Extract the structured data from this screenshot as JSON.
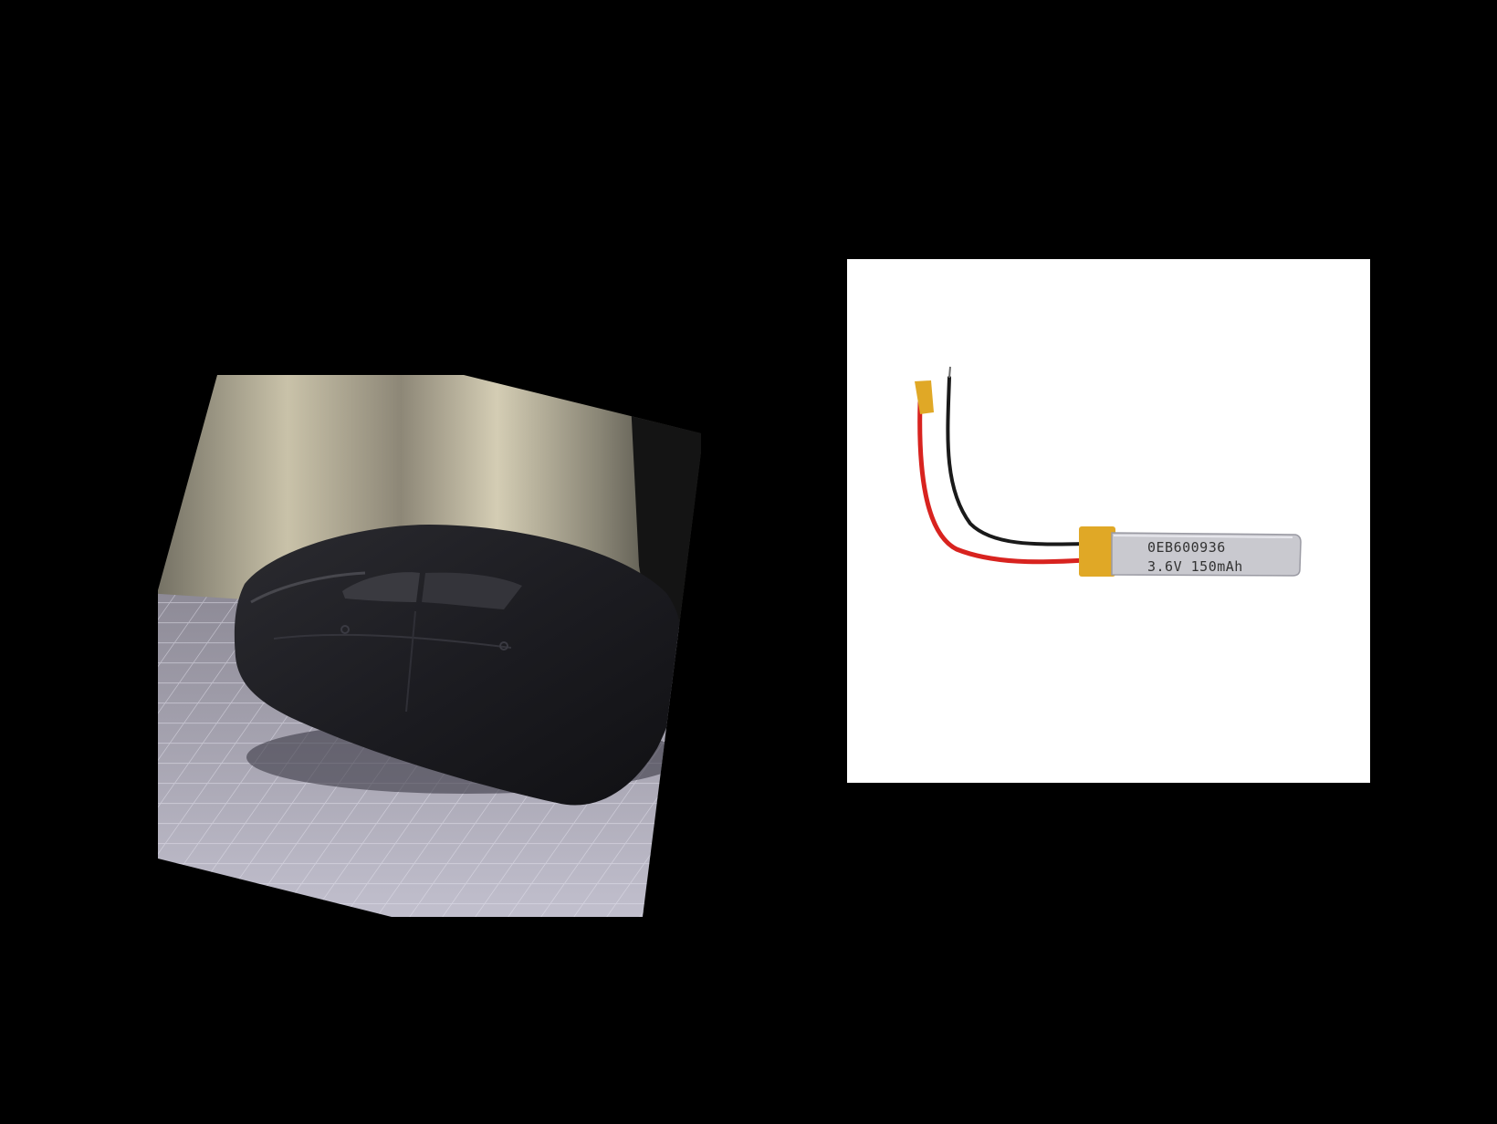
{
  "battery": {
    "part_number": "0EB600936",
    "spec": "3.6V 150mAh"
  },
  "colors": {
    "background": "#000000",
    "battery_card": "#ffffff",
    "red_wire": "#d8231f",
    "black_wire": "#1a1a1a",
    "kapton_tape": "#e0a826",
    "cell_body": "#c9c9cf"
  }
}
